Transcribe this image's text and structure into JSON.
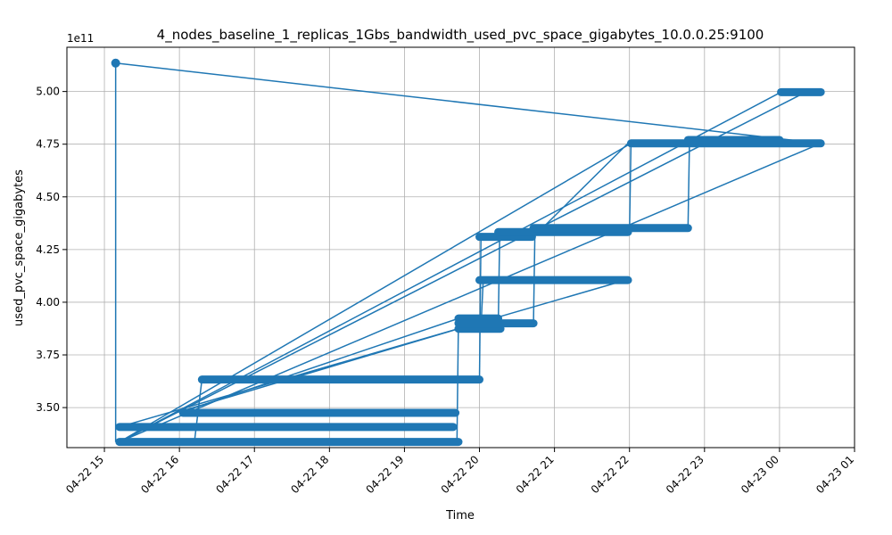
{
  "chart_data": {
    "type": "line",
    "title": "4_nodes_baseline_1_replicas_1Gbs_bandwidth_used_pvc_space_gigabytes_10.0.0.25:9100",
    "xlabel": "Time",
    "ylabel": "used_pvc_space_gigabytes",
    "y_offset_label": "1e11",
    "y_scale_factor": 100000000000,
    "x_ticks": [
      "04-22 15",
      "04-22 16",
      "04-22 17",
      "04-22 18",
      "04-22 19",
      "04-22 20",
      "04-22 21",
      "04-22 22",
      "04-22 23",
      "04-23 00",
      "04-23 01"
    ],
    "x_tick_values": [
      15,
      16,
      17,
      18,
      19,
      20,
      21,
      22,
      23,
      24,
      25
    ],
    "y_ticks": [
      "3.50",
      "3.75",
      "4.00",
      "4.25",
      "4.50",
      "4.75",
      "5.00"
    ],
    "y_tick_values": [
      3.5,
      3.75,
      4.0,
      4.25,
      4.5,
      4.75,
      5.0
    ],
    "xlim": [
      14.5,
      25.0
    ],
    "ylim": [
      3.31,
      5.21
    ],
    "grid": true,
    "series_color": "#1f77b4",
    "series": [
      {
        "segments": [
          {
            "x1": 15.2,
            "x2": 19.65,
            "y": 3.408
          },
          {
            "x1": 15.2,
            "x2": 19.72,
            "y": 3.337
          },
          {
            "x1": 16.05,
            "x2": 19.68,
            "y": 3.475
          },
          {
            "x1": 16.3,
            "x2": 20.0,
            "y": 3.633
          },
          {
            "x1": 19.72,
            "x2": 20.25,
            "y": 3.923
          },
          {
            "x1": 19.72,
            "x2": 20.28,
            "y": 3.874
          },
          {
            "x1": 19.72,
            "x2": 20.72,
            "y": 3.9
          },
          {
            "x1": 20.0,
            "x2": 21.98,
            "y": 4.105
          },
          {
            "x1": 20.0,
            "x2": 20.7,
            "y": 4.31
          },
          {
            "x1": 20.25,
            "x2": 21.98,
            "y": 4.333
          },
          {
            "x1": 20.72,
            "x2": 22.78,
            "y": 4.352
          },
          {
            "x1": 22.02,
            "x2": 24.55,
            "y": 4.754
          },
          {
            "x1": 22.78,
            "x2": 24.0,
            "y": 4.77
          },
          {
            "x1": 24.02,
            "x2": 24.55,
            "y": 4.997
          }
        ],
        "connectors": [
          [
            15.15,
            5.135,
            15.15,
            3.337
          ],
          [
            15.15,
            5.135,
            24.55,
            4.754
          ],
          [
            15.2,
            3.337,
            24.02,
            4.997
          ],
          [
            15.2,
            3.337,
            24.55,
            4.754
          ],
          [
            15.2,
            3.337,
            24.35,
            4.997
          ],
          [
            15.2,
            3.408,
            21.95,
            4.105
          ],
          [
            15.2,
            3.337,
            22.02,
            4.754
          ],
          [
            16.2,
            3.337,
            16.3,
            3.633
          ],
          [
            15.95,
            3.475,
            19.72,
            3.874
          ],
          [
            16.0,
            3.475,
            19.72,
            3.923
          ],
          [
            19.7,
            3.337,
            19.72,
            3.923
          ],
          [
            20.0,
            3.633,
            20.02,
            4.31
          ],
          [
            20.02,
            3.88,
            20.05,
            4.105
          ],
          [
            20.25,
            3.874,
            20.27,
            4.333
          ],
          [
            20.72,
            3.9,
            20.74,
            4.352
          ],
          [
            20.72,
            4.31,
            21.98,
            4.754
          ],
          [
            22.0,
            4.333,
            22.02,
            4.754
          ],
          [
            22.78,
            4.352,
            22.8,
            4.77
          ],
          [
            24.0,
            4.77,
            24.55,
            4.754
          ]
        ],
        "spike_point": [
          15.15,
          5.135
        ]
      }
    ]
  }
}
